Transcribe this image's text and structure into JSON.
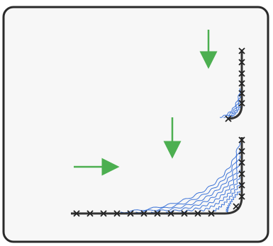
{
  "diagram": {
    "colors": {
      "background": "#ffffff",
      "frame_fill": "#f7f7f7",
      "frame_stroke": "#2a2a2a",
      "arrow": "#4caf50",
      "streamline": "#3d74d8",
      "boundary": "#333333",
      "marker": "#222222"
    },
    "elements": {
      "flow_arrows": [
        "flow-arrow-right",
        "flow-arrow-down",
        "flow-arrow-down"
      ],
      "boundaries": [
        "corner-boundary-small",
        "corner-boundary-large"
      ],
      "marker_symbol": "x"
    }
  }
}
